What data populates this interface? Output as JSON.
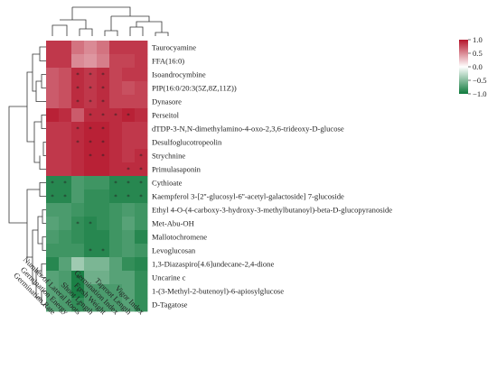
{
  "chart_data": {
    "type": "heatmap",
    "title": "",
    "rows": [
      "Taurocyamine",
      "FFA(16:0)",
      "Isoandrocymbine",
      "PIP(16:0/20:3(5Z,8Z,11Z))",
      "Dynasore",
      "Perseitol",
      "dTDP-3-N,N-dimethylamino-4-oxo-2,3,6-trideoxy-D-glucose",
      "Desulfoglucotropeolin",
      "Strychnine",
      "Primulasaponin",
      "Cythioate",
      "Kaempferol 3-[2''-glucosyl-6''-acetyl-galactoside] 7-glucoside",
      "Ethyl 4-O-(4-carboxy-3-hydroxy-3-methylbutanoyl)-beta-D-glucopyranoside",
      "Met-Abu-OH",
      "Mallotochromene",
      "Levoglucosan",
      "1,3-Diazaspiro[4.6]undecane-2,4-dione",
      "Uncarine c",
      "1-(3-Methyl-2-butenoyl)-6-apiosylglucose",
      "D-Tagatose"
    ],
    "columns": [
      "Germination Rate",
      "Germination Energy",
      "Number of Lateral Roots",
      "Shoot Length",
      "Fresh Weight",
      "Germination Index",
      "Taproot Length",
      "Vigor Index"
    ],
    "values": [
      [
        0.85,
        0.85,
        0.6,
        0.5,
        0.6,
        0.85,
        0.85,
        0.85
      ],
      [
        0.85,
        0.85,
        0.5,
        0.45,
        0.55,
        0.8,
        0.8,
        0.85
      ],
      [
        0.7,
        0.75,
        0.9,
        0.85,
        0.9,
        0.8,
        0.85,
        0.85
      ],
      [
        0.7,
        0.75,
        0.9,
        0.85,
        0.9,
        0.8,
        0.75,
        0.8
      ],
      [
        0.7,
        0.75,
        0.9,
        0.85,
        0.9,
        0.8,
        0.8,
        0.8
      ],
      [
        0.95,
        0.9,
        0.7,
        0.9,
        0.9,
        0.9,
        0.95,
        0.9
      ],
      [
        0.85,
        0.85,
        0.9,
        0.95,
        0.95,
        0.9,
        0.85,
        0.85
      ],
      [
        0.85,
        0.85,
        0.9,
        0.95,
        0.95,
        0.9,
        0.85,
        0.85
      ],
      [
        0.85,
        0.85,
        0.9,
        0.95,
        0.95,
        0.9,
        0.85,
        0.9
      ],
      [
        0.85,
        0.85,
        0.9,
        0.95,
        0.95,
        0.9,
        0.9,
        0.9
      ],
      [
        -0.9,
        -0.9,
        -0.75,
        -0.8,
        -0.8,
        -0.9,
        -0.9,
        -0.9
      ],
      [
        -0.9,
        -0.9,
        -0.75,
        -0.85,
        -0.85,
        -0.9,
        -0.9,
        -0.9
      ],
      [
        -0.75,
        -0.75,
        -0.8,
        -0.85,
        -0.85,
        -0.8,
        -0.75,
        -0.8
      ],
      [
        -0.7,
        -0.75,
        -0.85,
        -0.9,
        -0.85,
        -0.8,
        -0.7,
        -0.8
      ],
      [
        -0.75,
        -0.8,
        -0.85,
        -0.9,
        -0.9,
        -0.8,
        -0.75,
        -0.9
      ],
      [
        -0.8,
        -0.8,
        -0.8,
        -0.9,
        -0.9,
        -0.8,
        -0.75,
        -0.8
      ],
      [
        -0.9,
        -0.7,
        -0.4,
        -0.55,
        -0.55,
        -0.7,
        -0.85,
        -0.9
      ],
      [
        -0.7,
        -0.75,
        -0.95,
        -0.6,
        -0.6,
        -0.7,
        -0.7,
        -0.85
      ],
      [
        -0.7,
        -0.75,
        -0.95,
        -0.75,
        -0.75,
        -0.75,
        -0.7,
        -0.85
      ],
      [
        -0.7,
        -0.75,
        -0.85,
        -0.75,
        -0.75,
        -0.75,
        -0.7,
        -0.85
      ]
    ],
    "stars": [
      [
        "",
        "",
        "",
        "",
        "",
        "",
        "",
        ""
      ],
      [
        "",
        "",
        "",
        "",
        "",
        "",
        "",
        ""
      ],
      [
        "",
        "",
        "*",
        "*",
        "*",
        "",
        "",
        ""
      ],
      [
        "",
        "",
        "*",
        "*",
        "*",
        "",
        "",
        ""
      ],
      [
        "",
        "",
        "*",
        "*",
        "*",
        "",
        "",
        ""
      ],
      [
        "",
        "",
        "",
        "*",
        "*",
        "*",
        "*",
        ""
      ],
      [
        "",
        "",
        "*",
        "*",
        "*",
        "",
        "",
        ""
      ],
      [
        "",
        "",
        "*",
        "*",
        "*",
        "",
        "",
        ""
      ],
      [
        "",
        "",
        "",
        "*",
        "*",
        "",
        "",
        "*"
      ],
      [
        "",
        "",
        "",
        "",
        "",
        "",
        "*",
        "*"
      ],
      [
        "*",
        "*",
        "",
        "",
        "",
        "*",
        "*",
        "*"
      ],
      [
        "*",
        "*",
        "",
        "",
        "",
        "*",
        "*",
        "*"
      ],
      [
        "",
        "",
        "",
        "",
        "",
        "",
        "",
        ""
      ],
      [
        "",
        "",
        "*",
        "*",
        "",
        "",
        "",
        ""
      ],
      [
        "",
        "",
        "",
        "",
        "",
        "",
        "",
        ""
      ],
      [
        "",
        "",
        "",
        "*",
        "*",
        "",
        "",
        ""
      ],
      [
        "",
        "",
        "",
        "",
        "",
        "",
        "",
        ""
      ],
      [
        "",
        "",
        "*",
        "",
        "",
        "",
        "",
        ""
      ],
      [
        "",
        "",
        "*",
        "",
        "",
        "",
        "",
        ""
      ],
      [
        "",
        "",
        "*",
        "",
        "",
        "",
        "",
        ""
      ]
    ],
    "color_scale": {
      "min": -1.0,
      "max": 1.0,
      "low_color": "#0f7a3c",
      "mid_color": "#ffffff",
      "high_color": "#b5152b",
      "ticks": [
        "1.0",
        "0.5",
        "0.0",
        "−0.5",
        "−1.0"
      ]
    },
    "legend_placement": "top-right",
    "row_dendrogram": true,
    "column_dendrogram": true
  }
}
